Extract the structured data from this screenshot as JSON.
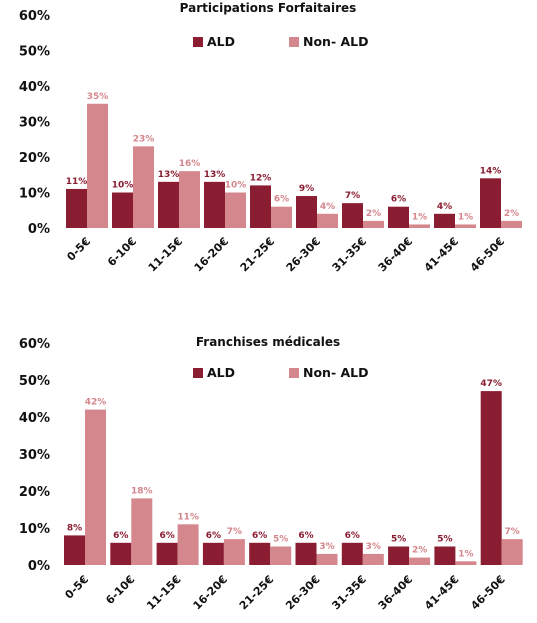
{
  "colors": {
    "ald": "#8b1d32",
    "non_ald": "#d4878d"
  },
  "chart_data": [
    {
      "type": "bar",
      "title": "Participations Forfaitaires",
      "categories": [
        "0-5€",
        "6-10€",
        "11-15€",
        "16-20€",
        "21-25€",
        "26-30€",
        "31-35€",
        "36-40€",
        "41-45€",
        "46-50€"
      ],
      "series": [
        {
          "name": "ALD",
          "values": [
            11,
            10,
            13,
            13,
            12,
            9,
            7,
            6,
            4,
            14
          ],
          "labels": [
            "11%",
            "10%",
            "13%",
            "13%",
            "12%",
            "9%",
            "7%",
            "6%",
            "4%",
            "14%"
          ]
        },
        {
          "name": "Non- ALD",
          "values": [
            35,
            23,
            16,
            10,
            6,
            4,
            2,
            1,
            1,
            2
          ],
          "labels": [
            "35%",
            "23%",
            "16%",
            "10%",
            "6%",
            "4%",
            "2%",
            "1%",
            "1%",
            "2%"
          ]
        }
      ],
      "ylim": [
        0,
        60
      ],
      "yticks": [
        "0%",
        "10%",
        "20%",
        "30%",
        "40%",
        "50%",
        "60%"
      ],
      "legend": "top-center",
      "grid": false
    },
    {
      "type": "bar",
      "title": "Franchises médicales",
      "categories": [
        "0-5€",
        "6-10€",
        "11-15€",
        "16-20€",
        "21-25€",
        "26-30€",
        "31-35€",
        "36-40€",
        "41-45€",
        "46-50€"
      ],
      "series": [
        {
          "name": "ALD",
          "values": [
            8,
            6,
            6,
            6,
            6,
            6,
            6,
            5,
            5,
            47
          ],
          "labels": [
            "8%",
            "6%",
            "6%",
            "6%",
            "6%",
            "6%",
            "6%",
            "5%",
            "5%",
            "47%"
          ]
        },
        {
          "name": "Non- ALD",
          "values": [
            42,
            18,
            11,
            7,
            5,
            3,
            3,
            2,
            1,
            7
          ],
          "labels": [
            "42%",
            "18%",
            "11%",
            "7%",
            "5%",
            "3%",
            "3%",
            "2%",
            "1%",
            "7%"
          ]
        }
      ],
      "ylim": [
        0,
        60
      ],
      "yticks": [
        "0%",
        "10%",
        "20%",
        "30%",
        "40%",
        "50%",
        "60%"
      ],
      "legend": "top-center",
      "grid": false
    }
  ]
}
